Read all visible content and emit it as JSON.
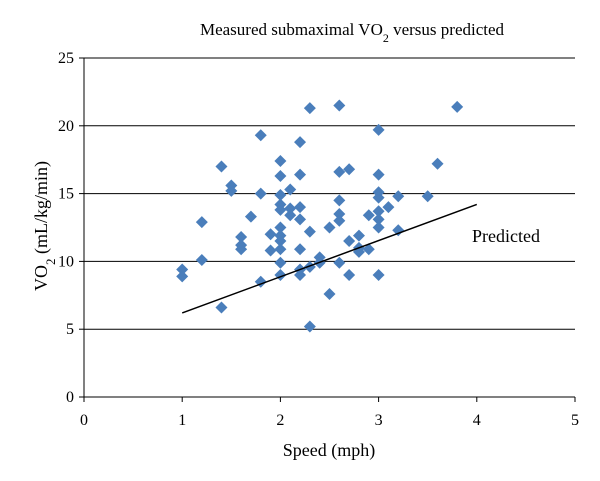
{
  "chart_data": {
    "type": "scatter",
    "title_parts": [
      "Measured submaximal VO",
      "2",
      " versus predicted"
    ],
    "xlabel": "Speed (mph)",
    "ylabel_parts": [
      "VO",
      "2",
      " (mL/kg/min)"
    ],
    "xlim": [
      0,
      5
    ],
    "ylim": [
      0,
      25
    ],
    "x_ticks": [
      0,
      1,
      2,
      3,
      4,
      5
    ],
    "y_ticks": [
      0,
      5,
      10,
      15,
      20,
      25
    ],
    "grid": "horizontal",
    "annotation": "Predicted",
    "marker_color": "#4a7ebb",
    "line_color": "#000000",
    "series": [
      {
        "marker": "diamond",
        "points": [
          [
            1.0,
            9.4
          ],
          [
            1.0,
            8.9
          ],
          [
            1.2,
            12.9
          ],
          [
            1.2,
            10.1
          ],
          [
            1.4,
            17.0
          ],
          [
            1.4,
            6.6
          ],
          [
            1.5,
            15.6
          ],
          [
            1.5,
            15.2
          ],
          [
            1.6,
            11.8
          ],
          [
            1.6,
            11.2
          ],
          [
            1.6,
            10.9
          ],
          [
            1.7,
            13.3
          ],
          [
            1.8,
            19.3
          ],
          [
            1.8,
            15.0
          ],
          [
            1.8,
            8.5
          ],
          [
            1.9,
            12.0
          ],
          [
            1.9,
            10.8
          ],
          [
            2.0,
            17.4
          ],
          [
            2.0,
            16.3
          ],
          [
            2.0,
            14.9
          ],
          [
            2.0,
            14.2
          ],
          [
            2.0,
            13.8
          ],
          [
            2.0,
            12.5
          ],
          [
            2.0,
            11.9
          ],
          [
            2.0,
            11.5
          ],
          [
            2.0,
            10.9
          ],
          [
            2.0,
            9.9
          ],
          [
            2.0,
            9.0
          ],
          [
            2.1,
            15.3
          ],
          [
            2.1,
            13.9
          ],
          [
            2.1,
            13.4
          ],
          [
            2.2,
            18.8
          ],
          [
            2.2,
            16.4
          ],
          [
            2.2,
            14.0
          ],
          [
            2.2,
            13.1
          ],
          [
            2.2,
            10.9
          ],
          [
            2.2,
            9.4
          ],
          [
            2.2,
            9.0
          ],
          [
            2.3,
            21.3
          ],
          [
            2.3,
            12.2
          ],
          [
            2.3,
            9.6
          ],
          [
            2.3,
            5.2
          ],
          [
            2.4,
            10.3
          ],
          [
            2.4,
            9.9
          ],
          [
            2.5,
            12.5
          ],
          [
            2.5,
            7.6
          ],
          [
            2.6,
            21.5
          ],
          [
            2.6,
            16.6
          ],
          [
            2.6,
            14.5
          ],
          [
            2.6,
            13.5
          ],
          [
            2.6,
            13.0
          ],
          [
            2.6,
            9.9
          ],
          [
            2.7,
            16.8
          ],
          [
            2.7,
            11.5
          ],
          [
            2.7,
            9.0
          ],
          [
            2.8,
            11.9
          ],
          [
            2.8,
            11.0
          ],
          [
            2.8,
            10.7
          ],
          [
            2.9,
            13.4
          ],
          [
            2.9,
            10.9
          ],
          [
            3.0,
            19.7
          ],
          [
            3.0,
            16.4
          ],
          [
            3.0,
            15.1
          ],
          [
            3.0,
            14.7
          ],
          [
            3.0,
            13.7
          ],
          [
            3.0,
            13.1
          ],
          [
            3.0,
            12.5
          ],
          [
            3.0,
            9.0
          ],
          [
            3.1,
            14.0
          ],
          [
            3.2,
            14.8
          ],
          [
            3.2,
            12.3
          ],
          [
            3.5,
            14.8
          ],
          [
            3.6,
            17.2
          ],
          [
            3.8,
            21.4
          ]
        ]
      }
    ],
    "predicted_line": [
      [
        1.0,
        6.2
      ],
      [
        4.0,
        14.2
      ]
    ]
  }
}
